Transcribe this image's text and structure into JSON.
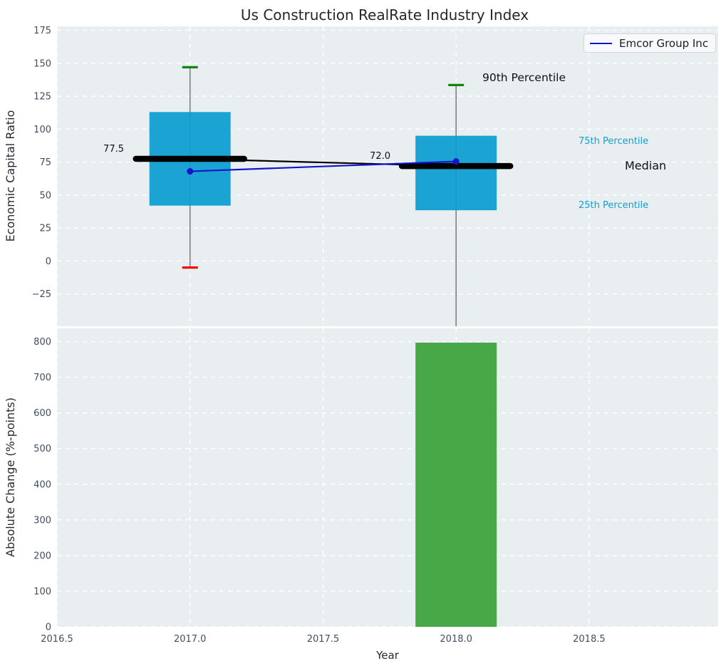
{
  "title": "Us Construction RealRate Industry Index",
  "legend": {
    "label": "Emcor Group Inc"
  },
  "colors": {
    "axes_background": "#e9eef0",
    "grid": "#ffffff",
    "box_fill": "#0a9dd1",
    "bar_fill": "#3fa23c",
    "whisker": "#828282",
    "cap_high": "#0f870f",
    "cap_low": "#f40000",
    "median": "#000000",
    "series_line": "#1414cc",
    "annotation_cyan": "#149fd1"
  },
  "chart_data": [
    {
      "type": "box-percentile",
      "ylabel": "Economic Capital Ratio",
      "ylim": [
        -49.5,
        178
      ],
      "xlim": [
        2016.5,
        2018.985
      ],
      "grid": "white dashed on light-grey panel",
      "ytick_values": [
        175,
        150,
        125,
        100,
        75,
        50,
        25,
        0,
        -25
      ],
      "ytick_labels": [
        "175",
        "150",
        "125",
        "100",
        "75",
        "50",
        "25",
        "0",
        "−25"
      ],
      "xtick_values": [
        2016.5,
        2017.0,
        2017.5,
        2018.0,
        2018.5
      ],
      "boxes": [
        {
          "x": 2017.0,
          "q1": 42,
          "median": 77.5,
          "q3": 113,
          "whisker_high": 147,
          "whisker_low": -5,
          "median_label": "77.5"
        },
        {
          "x": 2018.0,
          "q1": 38.5,
          "median": 72.0,
          "q3": 95,
          "whisker_high": 133.5,
          "whisker_low": null,
          "whisker_low_clipped": true,
          "median_label": "72.0"
        }
      ],
      "series": [
        {
          "name": "Emcor Group Inc",
          "x": [
            2017.0,
            2018.0
          ],
          "y": [
            68,
            75.5
          ]
        }
      ],
      "annotations": [
        {
          "text": "77.5"
        },
        {
          "text": "72.0"
        },
        {
          "text": "90th Percentile"
        },
        {
          "text": "75th Percentile"
        },
        {
          "text": "Median"
        },
        {
          "text": "25th Percentile"
        }
      ],
      "legend_position": "upper right"
    },
    {
      "type": "bar",
      "ylabel": "Absolute Change (%-points)",
      "xlabel": "Year",
      "ylim": [
        0,
        837
      ],
      "xlim": [
        2016.5,
        2018.985
      ],
      "ytick_values": [
        800,
        700,
        600,
        500,
        400,
        300,
        200,
        100,
        0
      ],
      "ytick_labels": [
        "800",
        "700",
        "600",
        "500",
        "400",
        "300",
        "200",
        "100",
        "0"
      ],
      "xtick_values": [
        2016.5,
        2017.0,
        2017.5,
        2018.0,
        2018.5
      ],
      "xtick_labels": [
        "2016.5",
        "2017.0",
        "2017.5",
        "2018.0",
        "2018.5"
      ],
      "bars": [
        {
          "x": 2018.0,
          "value": 797
        }
      ]
    }
  ]
}
